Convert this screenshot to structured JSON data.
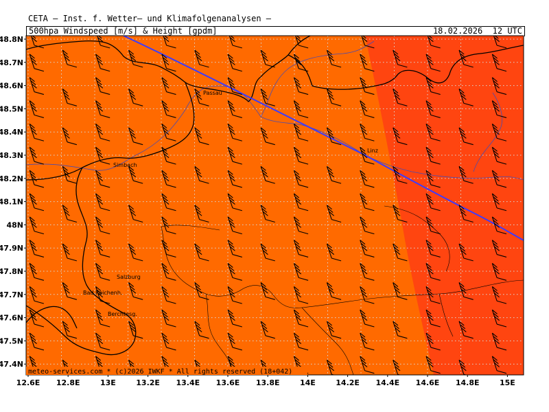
{
  "header": {
    "title": "CETA — Inst. f. Wetter— und Klimafolgenanalysen —",
    "subtitle": "500hpa_Windspeed_[m/s]_&_Height_[gpdm]",
    "datetime": "18.02.2026  12 UTC"
  },
  "footer": {
    "copyright": "meteo-services.com * (c)2026 IWKF * All rights reserved (18+042)"
  },
  "axes": {
    "lon_labels": [
      "12.6E",
      "12.8E",
      "13E",
      "13.2E",
      "13.4E",
      "13.6E",
      "13.8E",
      "14E",
      "14.2E",
      "14.4E",
      "14.6E",
      "14.8E",
      "15E"
    ],
    "lat_labels": [
      "48.8N",
      "48.7N",
      "48.6N",
      "48.5N",
      "48.4N",
      "48.3N",
      "48.2N",
      "48.1N",
      "48N",
      "47.9N",
      "47.8N",
      "47.7N",
      "47.6N",
      "47.5N",
      "47.4N"
    ]
  },
  "cities": [
    {
      "name": "Passau"
    },
    {
      "name": "Linz"
    },
    {
      "name": "Simbach"
    },
    {
      "name": "Salzburg"
    },
    {
      "name": "Bad Reichenh."
    },
    {
      "name": "Berchtesg."
    }
  ],
  "colors": {
    "field_main": "#ff6a00",
    "field_strong": "#ff4510",
    "contour": "#3b3bff",
    "border": "#000000",
    "grid": "#cccccc"
  },
  "icons": {
    "wind_barb": "wind-barb-icon"
  }
}
